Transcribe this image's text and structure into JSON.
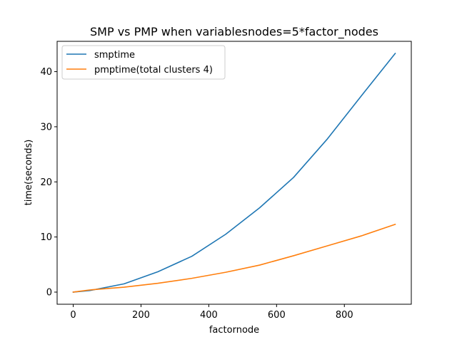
{
  "chart_data": {
    "type": "line",
    "title": "SMP vs PMP when variablesnodes=5*factor_nodes",
    "xlabel": "factornode",
    "ylabel": "time(seconds)",
    "xlim": [
      -47.5,
      997.5
    ],
    "ylim": [
      -2.2,
      45.5
    ],
    "xticks": [
      0,
      200,
      400,
      600,
      800
    ],
    "yticks": [
      0,
      10,
      20,
      30,
      40
    ],
    "grid": false,
    "legend_position": "upper-left",
    "x": [
      0,
      50,
      150,
      250,
      350,
      450,
      550,
      650,
      750,
      850,
      950
    ],
    "series": [
      {
        "name": "smptime",
        "color": "#1f77b4",
        "values": [
          0.0,
          0.3,
          1.5,
          3.7,
          6.5,
          10.5,
          15.3,
          20.8,
          27.8,
          35.6,
          43.3
        ]
      },
      {
        "name": "pmptime(total clusters 4)",
        "color": "#ff7f0e",
        "values": [
          0.0,
          0.4,
          0.9,
          1.6,
          2.5,
          3.6,
          4.9,
          6.6,
          8.4,
          10.2,
          12.3
        ]
      }
    ]
  }
}
